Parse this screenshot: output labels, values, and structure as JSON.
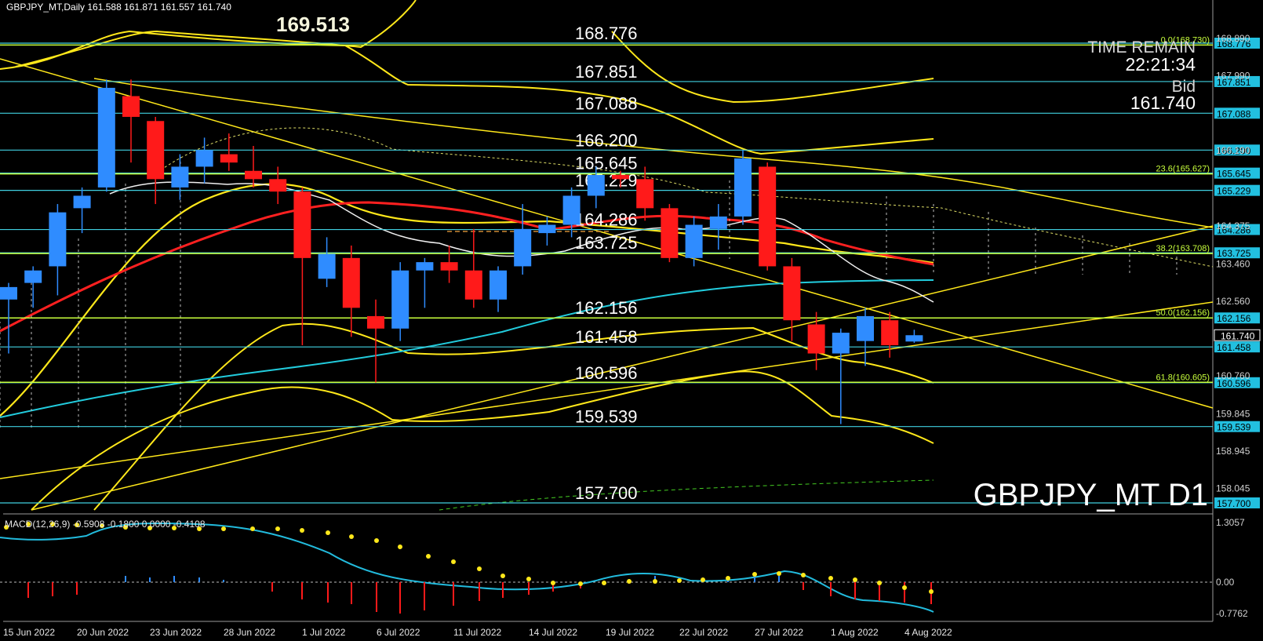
{
  "header": {
    "text": "GBPJPY_MT,Daily  161.588 161.871 161.557 161.740"
  },
  "top_callout": "169.513",
  "watermark": "GBPJPY_MT D1",
  "time_remain": {
    "label": "TIME REMAIN",
    "value": "22:21:34"
  },
  "bid": {
    "label": "Bid",
    "value": "161.740"
  },
  "macd": {
    "label": "MACD(12,26,9) -0.5908 -0.1800 0.0000 -0.4108",
    "ticks": [
      "1.3057",
      "0.00",
      "-0.7762"
    ]
  },
  "colors": {
    "background": "#000000",
    "up_candle": "#2f8cff",
    "down_candle": "#ff1a1a",
    "level_line": "#40d0e0",
    "fib_line": "#c8ff3c",
    "yellow": "#ffe81a",
    "ma_red": "#ff2020",
    "ma_cyan": "#22ccdd",
    "price_tag": "#22c0e0"
  },
  "price_axis": {
    "min": 157.6,
    "max": 169.0,
    "labels": [
      "168.890",
      "167.990",
      "166.190",
      "164.375",
      "163.460",
      "162.560",
      "160.760",
      "159.845",
      "158.945",
      "158.045"
    ]
  },
  "levels": [
    {
      "price": 168.776,
      "label": "168.776"
    },
    {
      "price": 167.851,
      "label": "167.851"
    },
    {
      "price": 167.088,
      "label": "167.088"
    },
    {
      "price": 166.2,
      "label": "166.200"
    },
    {
      "price": 165.645,
      "label": "165.645"
    },
    {
      "price": 165.229,
      "label": "165.229"
    },
    {
      "price": 164.286,
      "label": "164.286"
    },
    {
      "price": 163.725,
      "label": "163.725"
    },
    {
      "price": 162.156,
      "label": "162.156"
    },
    {
      "price": 161.458,
      "label": "161.458"
    },
    {
      "price": 160.596,
      "label": "160.596"
    },
    {
      "price": 159.539,
      "label": "159.539"
    },
    {
      "price": 157.7,
      "label": "157.700"
    }
  ],
  "fib_levels": [
    {
      "price": 168.73,
      "label": "0.0(168.730)"
    },
    {
      "price": 165.627,
      "label": "23.6(165.627)"
    },
    {
      "price": 163.708,
      "label": "38.2(163.708)"
    },
    {
      "price": 162.156,
      "label": "50.0(162.156)"
    },
    {
      "price": 160.605,
      "label": "61.8(160.605)"
    }
  ],
  "current_price": "161.740",
  "x_axis_labels": [
    "15 Jun 2022",
    "20 Jun 2022",
    "23 Jun 2022",
    "28 Jun 2022",
    "1 Jul 2022",
    "6 Jul 2022",
    "11 Jul 2022",
    "14 Jul 2022",
    "19 Jul 2022",
    "22 Jul 2022",
    "27 Jul 2022",
    "1 Aug 2022",
    "4 Aug 2022"
  ],
  "chart_data": {
    "type": "candlestick",
    "series": [
      {
        "date": "2022-06-14",
        "open": 162.6,
        "high": 163.0,
        "low": 161.3,
        "close": 162.9
      },
      {
        "date": "2022-06-15",
        "open": 163.0,
        "high": 163.4,
        "low": 162.4,
        "close": 163.3
      },
      {
        "date": "2022-06-16",
        "open": 163.4,
        "high": 164.9,
        "low": 162.7,
        "close": 164.7
      },
      {
        "date": "2022-06-17",
        "open": 164.8,
        "high": 165.3,
        "low": 164.2,
        "close": 165.1
      },
      {
        "date": "2022-06-20",
        "open": 165.3,
        "high": 167.9,
        "low": 165.2,
        "close": 167.7
      },
      {
        "date": "2022-06-21",
        "open": 167.5,
        "high": 167.9,
        "low": 165.9,
        "close": 167.0
      },
      {
        "date": "2022-06-22",
        "open": 166.9,
        "high": 167.0,
        "low": 164.9,
        "close": 165.5
      },
      {
        "date": "2022-06-23",
        "open": 165.3,
        "high": 166.1,
        "low": 165.0,
        "close": 165.8
      },
      {
        "date": "2022-06-24",
        "open": 165.8,
        "high": 166.5,
        "low": 165.4,
        "close": 166.2
      },
      {
        "date": "2022-06-27",
        "open": 166.1,
        "high": 166.6,
        "low": 165.7,
        "close": 165.9
      },
      {
        "date": "2022-06-28",
        "open": 165.7,
        "high": 166.3,
        "low": 165.3,
        "close": 165.5
      },
      {
        "date": "2022-06-29",
        "open": 165.5,
        "high": 165.8,
        "low": 164.9,
        "close": 165.2
      },
      {
        "date": "2022-06-30",
        "open": 165.2,
        "high": 165.3,
        "low": 161.5,
        "close": 163.6
      },
      {
        "date": "2022-07-01",
        "open": 163.1,
        "high": 164.1,
        "low": 162.9,
        "close": 163.7
      },
      {
        "date": "2022-07-04",
        "open": 163.6,
        "high": 163.9,
        "low": 161.7,
        "close": 162.4
      },
      {
        "date": "2022-07-05",
        "open": 162.2,
        "high": 162.6,
        "low": 160.6,
        "close": 161.9
      },
      {
        "date": "2022-07-06",
        "open": 161.9,
        "high": 163.5,
        "low": 161.6,
        "close": 163.3
      },
      {
        "date": "2022-07-07",
        "open": 163.3,
        "high": 163.6,
        "low": 162.4,
        "close": 163.5
      },
      {
        "date": "2022-07-08",
        "open": 163.5,
        "high": 163.9,
        "low": 163.0,
        "close": 163.3
      },
      {
        "date": "2022-07-11",
        "open": 163.3,
        "high": 164.3,
        "low": 162.4,
        "close": 162.6
      },
      {
        "date": "2022-07-12",
        "open": 162.6,
        "high": 163.4,
        "low": 162.3,
        "close": 163.3
      },
      {
        "date": "2022-07-13",
        "open": 163.4,
        "high": 164.9,
        "low": 163.2,
        "close": 164.3
      },
      {
        "date": "2022-07-14",
        "open": 164.2,
        "high": 164.6,
        "low": 163.9,
        "close": 164.4
      },
      {
        "date": "2022-07-15",
        "open": 164.4,
        "high": 165.3,
        "low": 164.1,
        "close": 165.1
      },
      {
        "date": "2022-07-18",
        "open": 165.1,
        "high": 165.8,
        "low": 164.8,
        "close": 165.6
      },
      {
        "date": "2022-07-19",
        "open": 165.6,
        "high": 165.7,
        "low": 165.3,
        "close": 165.5
      },
      {
        "date": "2022-07-20",
        "open": 165.5,
        "high": 165.8,
        "low": 164.5,
        "close": 164.8
      },
      {
        "date": "2022-07-21",
        "open": 164.8,
        "high": 164.9,
        "low": 163.5,
        "close": 163.6
      },
      {
        "date": "2022-07-22",
        "open": 163.6,
        "high": 164.6,
        "low": 163.4,
        "close": 164.4
      },
      {
        "date": "2022-07-25",
        "open": 164.3,
        "high": 164.9,
        "low": 163.8,
        "close": 164.6
      },
      {
        "date": "2022-07-26",
        "open": 164.6,
        "high": 166.2,
        "low": 164.4,
        "close": 166.0
      },
      {
        "date": "2022-07-27",
        "open": 165.8,
        "high": 165.9,
        "low": 163.3,
        "close": 163.4
      },
      {
        "date": "2022-07-28",
        "open": 163.4,
        "high": 163.6,
        "low": 161.6,
        "close": 162.1
      },
      {
        "date": "2022-07-29",
        "open": 162.0,
        "high": 162.3,
        "low": 160.9,
        "close": 161.3
      },
      {
        "date": "2022-08-01",
        "open": 161.3,
        "high": 161.9,
        "low": 159.6,
        "close": 161.8
      },
      {
        "date": "2022-08-02",
        "open": 161.6,
        "high": 162.4,
        "low": 161.0,
        "close": 162.2
      },
      {
        "date": "2022-08-03",
        "open": 162.1,
        "high": 162.3,
        "low": 161.2,
        "close": 161.5
      },
      {
        "date": "2022-08-04",
        "open": 161.588,
        "high": 161.871,
        "low": 161.557,
        "close": 161.74
      }
    ]
  }
}
